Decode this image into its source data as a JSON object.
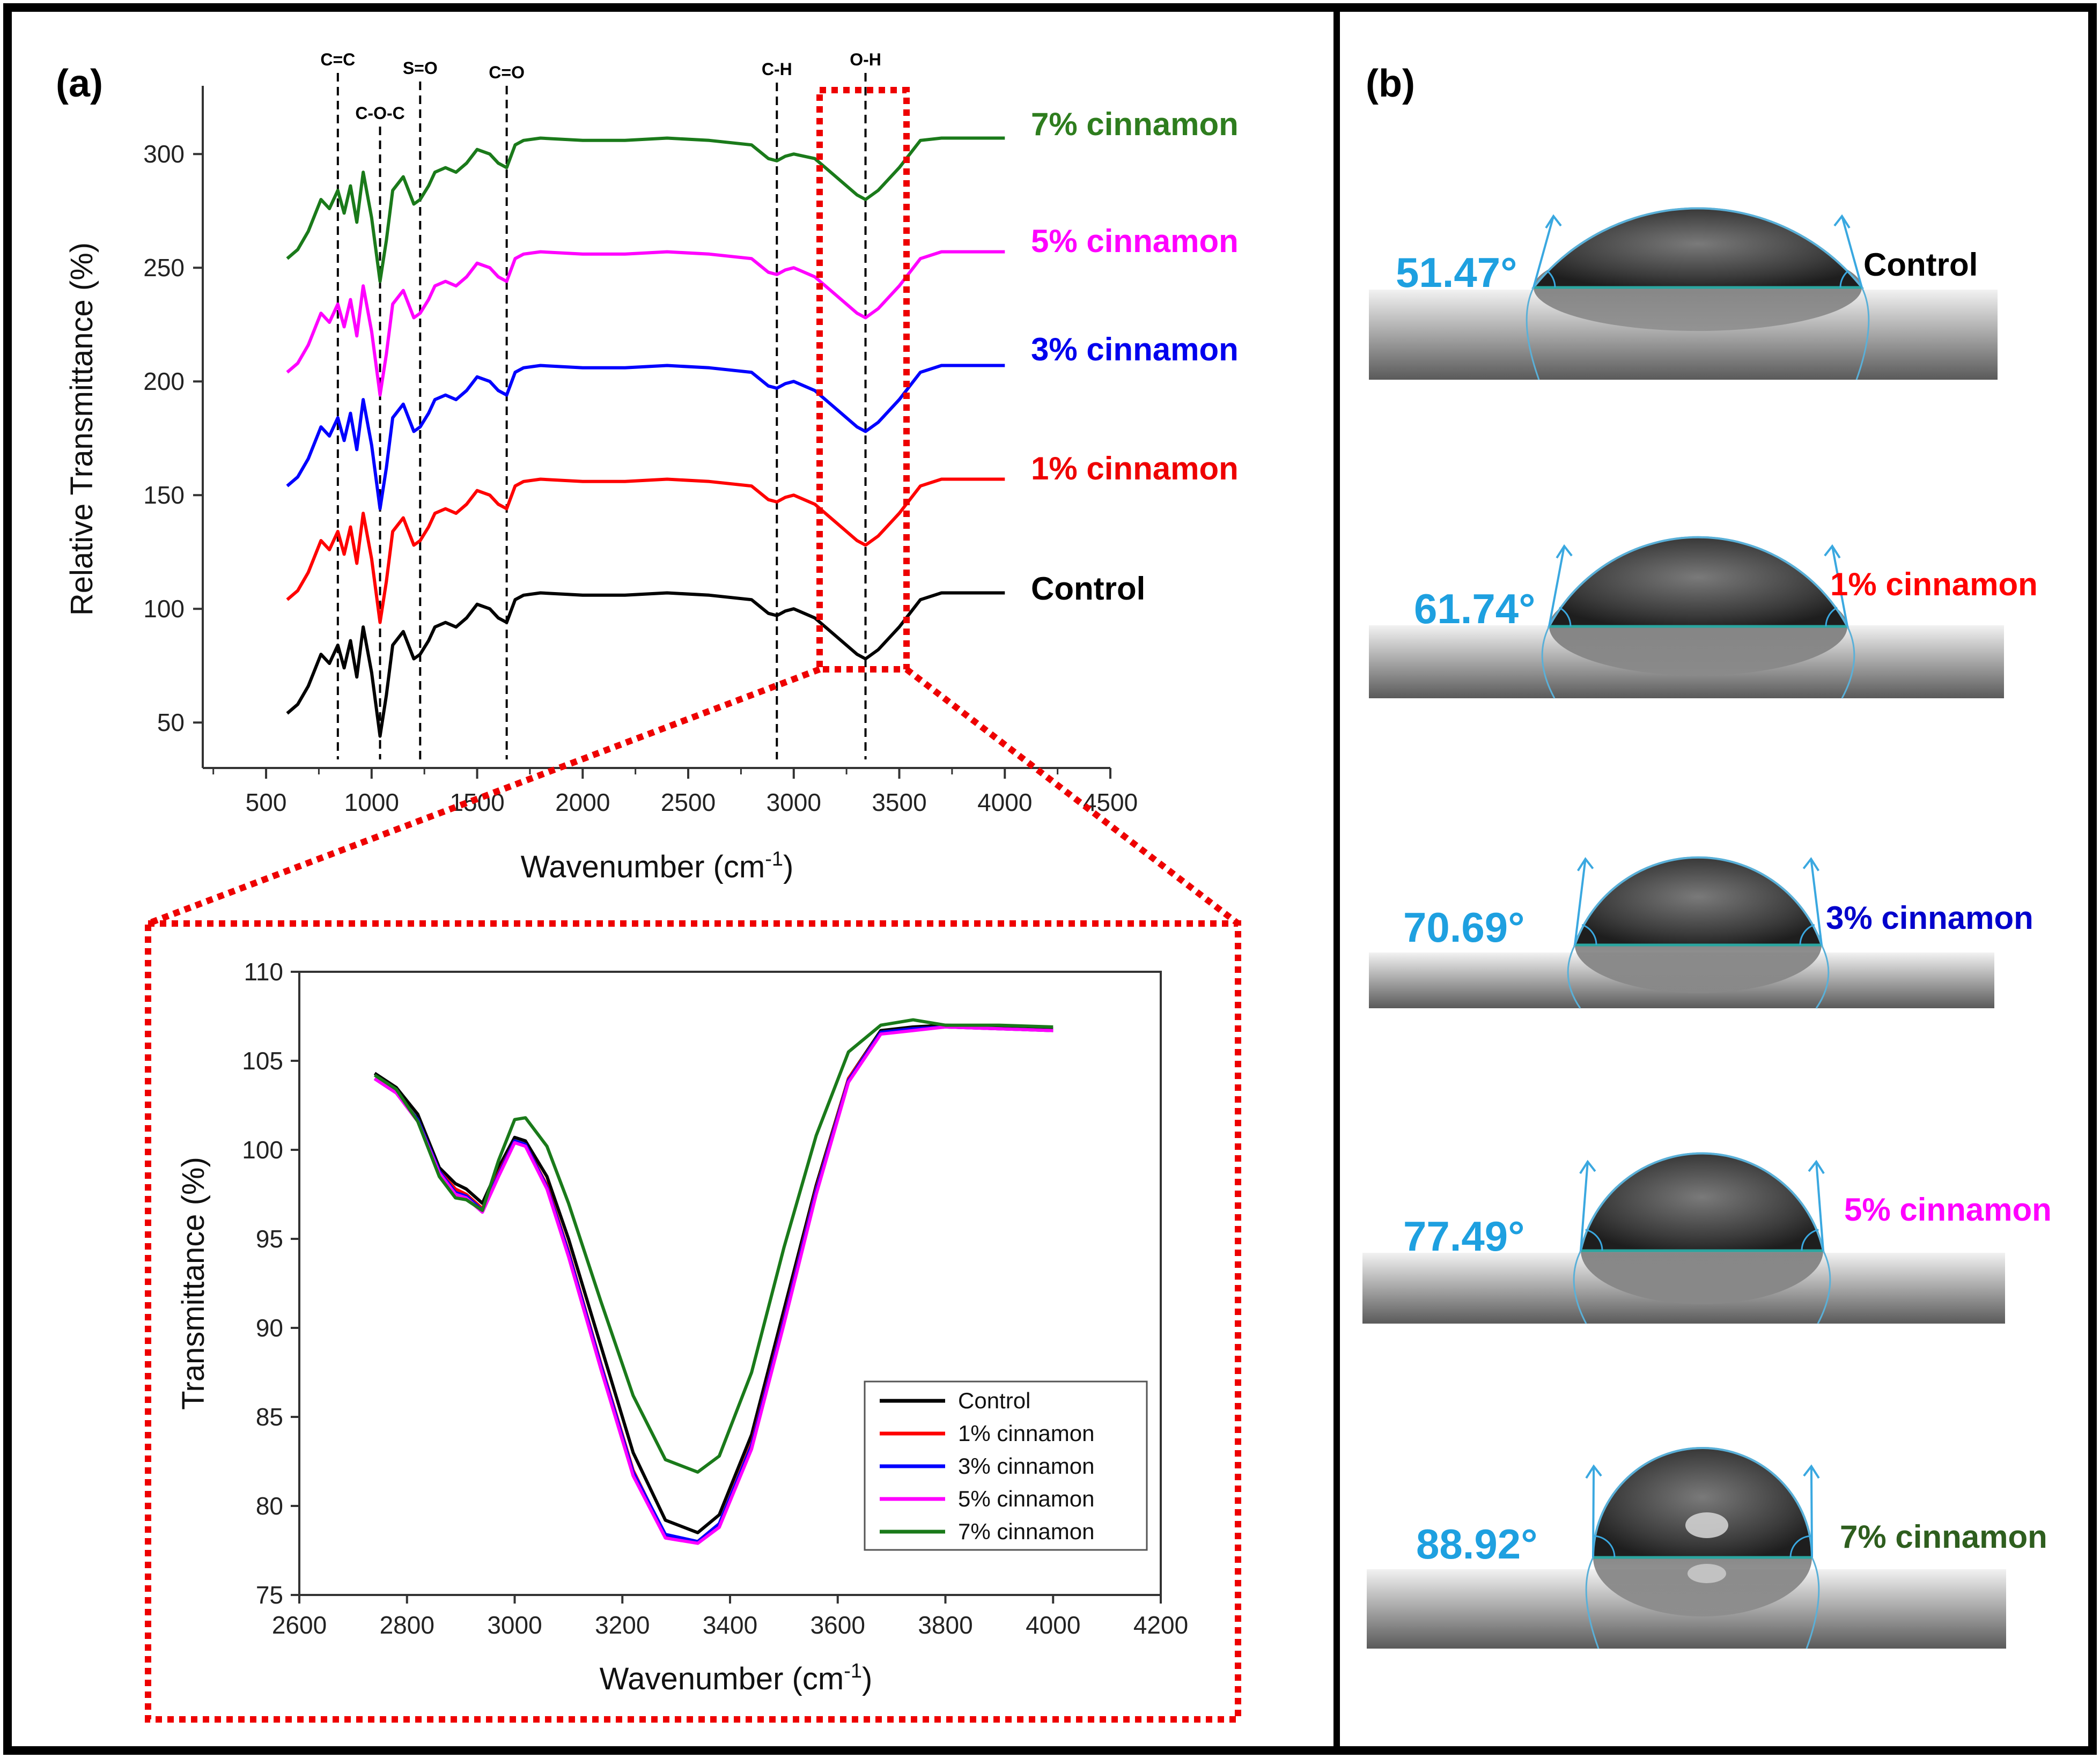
{
  "panel_a": {
    "label": "(a)",
    "main": {
      "ylabel": "Relative Transmittance (%)",
      "xlabel": "Wavenumber (cm",
      "xlabel_sup": "-1",
      "xlabel_end": ")",
      "yticks": [
        "50",
        "100",
        "150",
        "200",
        "250",
        "300"
      ],
      "xticks": [
        "500",
        "1000",
        "1500",
        "2000",
        "2500",
        "3000",
        "3500",
        "4000",
        "4500"
      ],
      "bands": [
        {
          "label": "C=C",
          "wn": 840
        },
        {
          "label": "C-O-C",
          "wn": 1040
        },
        {
          "label": "S=O",
          "wn": 1230
        },
        {
          "label": "C=O",
          "wn": 1640
        },
        {
          "label": "C-H",
          "wn": 2920
        },
        {
          "label": "O-H",
          "wn": 3340
        }
      ]
    },
    "inset": {
      "ylabel": "Transmittance (%)",
      "xlabel": "Wavenumber (cm",
      "xlabel_sup": "-1",
      "xlabel_end": ")",
      "yticks": [
        "75",
        "80",
        "85",
        "90",
        "95",
        "100",
        "105",
        "110"
      ],
      "xticks": [
        "2600",
        "2800",
        "3000",
        "3200",
        "3400",
        "3600",
        "3800",
        "4000",
        "4200"
      ]
    },
    "legend": [
      "Control",
      "1% cinnamon",
      "3% cinnamon",
      "5% cinnamon",
      "7% cinnamon"
    ],
    "series_labels": [
      "7% cinnamon",
      "5% cinnamon",
      "3% cinnamon",
      "1% cinnamon",
      "Control"
    ]
  },
  "panel_b": {
    "label": "(b)",
    "drops": [
      {
        "angle": "51.47°",
        "sample": "Control",
        "color": "#000000"
      },
      {
        "angle": "61.74°",
        "sample": "1% cinnamon",
        "color": "#ff0000"
      },
      {
        "angle": "70.69°",
        "sample": "3% cinnamon",
        "color": "#0000cc"
      },
      {
        "angle": "77.49°",
        "sample": "5% cinnamon",
        "color": "#ff00ff"
      },
      {
        "angle": "88.92°",
        "sample": "7% cinnamon",
        "color": "#2e5e1e"
      }
    ]
  },
  "colors": {
    "control": "#000000",
    "c1": "#ff0000",
    "c3": "#0000ff",
    "c5": "#ff00ff",
    "c7": "#1a7a1a",
    "angle": "#1ea0e0",
    "highlight": "#ee0000"
  },
  "chart_data": [
    {
      "type": "line",
      "title": "",
      "xlabel": "Wavenumber (cm-1)",
      "ylabel": "Relative Transmittance (%)",
      "xlim": [
        200,
        4500
      ],
      "ylim": [
        30,
        330
      ],
      "series": [
        {
          "name": "Control",
          "offset": 0,
          "end_value": 107
        },
        {
          "name": "1% cinnamon",
          "offset": 50,
          "end_value": 157
        },
        {
          "name": "3% cinnamon",
          "offset": 100,
          "end_value": 207
        },
        {
          "name": "5% cinnamon",
          "offset": 150,
          "end_value": 257
        },
        {
          "name": "7% cinnamon",
          "offset": 200,
          "end_value": 307
        }
      ],
      "base_profile": {
        "x": [
          600,
          650,
          700,
          760,
          800,
          840,
          870,
          900,
          930,
          960,
          1000,
          1040,
          1070,
          1100,
          1150,
          1200,
          1230,
          1270,
          1300,
          1350,
          1400,
          1450,
          1500,
          1560,
          1600,
          1640,
          1680,
          1720,
          1800,
          2000,
          2200,
          2400,
          2600,
          2800,
          2880,
          2920,
          2960,
          3000,
          3100,
          3200,
          3300,
          3340,
          3400,
          3500,
          3600,
          3700,
          4000
        ],
        "y": [
          54,
          58,
          66,
          80,
          76,
          84,
          74,
          86,
          70,
          92,
          72,
          44,
          62,
          84,
          90,
          78,
          80,
          86,
          92,
          94,
          92,
          96,
          102,
          100,
          96,
          94,
          104,
          106,
          107,
          106,
          106,
          107,
          106,
          104,
          98,
          97,
          99,
          100,
          96,
          88,
          80,
          78,
          82,
          92,
          104,
          107,
          107
        ]
      }
    },
    {
      "type": "line",
      "title": "",
      "xlabel": "Wavenumber (cm-1)",
      "ylabel": "Transmittance (%)",
      "xlim": [
        2600,
        4200
      ],
      "ylim": [
        75,
        110
      ],
      "x": [
        2740,
        2780,
        2820,
        2860,
        2890,
        2910,
        2940,
        2970,
        3000,
        3020,
        3060,
        3100,
        3160,
        3220,
        3280,
        3340,
        3380,
        3440,
        3500,
        3560,
        3620,
        3680,
        3740,
        3800,
        3900,
        4000
      ],
      "series": [
        {
          "name": "Control",
          "values": [
            104.3,
            103.5,
            102,
            99,
            98.1,
            97.8,
            97,
            99,
            100.7,
            100.5,
            98.5,
            95,
            89,
            83,
            79.2,
            78.5,
            79.5,
            84,
            91,
            98,
            104,
            106.7,
            106.9,
            107,
            106.9,
            106.8
          ]
        },
        {
          "name": "1% cinnamon",
          "values": [
            104,
            103.2,
            101.7,
            98.8,
            97.8,
            97.5,
            96.7,
            98.7,
            100.5,
            100.3,
            98,
            94.3,
            88,
            82,
            78.3,
            78,
            79,
            83.5,
            90.5,
            97.8,
            104,
            106.6,
            106.8,
            106.9,
            106.8,
            106.7
          ]
        },
        {
          "name": "3% cinnamon",
          "values": [
            104,
            103.2,
            101.7,
            98.8,
            97.6,
            97.4,
            96.6,
            98.6,
            100.5,
            100.3,
            97.9,
            94.2,
            87.9,
            81.9,
            78.4,
            78,
            79,
            83.4,
            90.4,
            97.7,
            103.9,
            106.6,
            106.8,
            106.9,
            106.8,
            106.7
          ]
        },
        {
          "name": "5% cinnamon",
          "values": [
            104,
            103.2,
            101.6,
            98.7,
            97.5,
            97.3,
            96.5,
            98.5,
            100.4,
            100.2,
            97.8,
            94,
            87.7,
            81.7,
            78.2,
            77.9,
            78.8,
            83.2,
            90.2,
            97.5,
            103.8,
            106.5,
            106.7,
            106.9,
            106.8,
            106.7
          ]
        },
        {
          "name": "7% cinnamon",
          "values": [
            104.2,
            103.4,
            101.6,
            98.5,
            97.3,
            97.2,
            96.6,
            99.4,
            101.7,
            101.8,
            100.2,
            97,
            91.5,
            86.2,
            82.6,
            81.9,
            82.8,
            87.5,
            94.5,
            100.8,
            105.5,
            107,
            107.3,
            107,
            107,
            106.9
          ]
        }
      ]
    }
  ]
}
